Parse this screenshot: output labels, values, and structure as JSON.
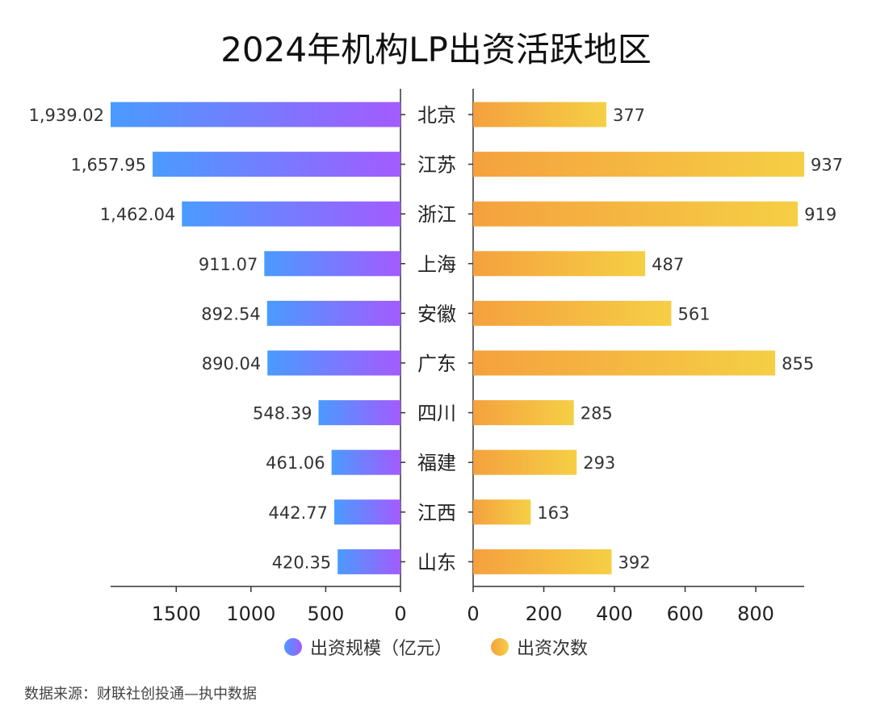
{
  "title": "2024年机构LP出资活跃地区",
  "source": "数据来源：财联社创投通—执中数据",
  "colors": {
    "left_gradient": [
      "#4a9bff",
      "#a35bff"
    ],
    "right_gradient": [
      "#f5a13e",
      "#f5cf45"
    ],
    "axis": "#333333",
    "text": "#333333"
  },
  "chart_data": {
    "type": "bar",
    "orientation": "horizontal-butterfly",
    "title": "2024年机构LP出资活跃地区",
    "categories": [
      "北京",
      "江苏",
      "浙江",
      "上海",
      "安徽",
      "广东",
      "四川",
      "福建",
      "江西",
      "山东"
    ],
    "series": [
      {
        "name": "出资规模（亿元）",
        "side": "left",
        "values": [
          1939.02,
          1657.95,
          1462.04,
          911.07,
          892.54,
          890.04,
          548.39,
          461.06,
          442.77,
          420.35
        ],
        "labels": [
          "1,939.02",
          "1,657.95",
          "1,462.04",
          "911.07",
          "892.54",
          "890.04",
          "548.39",
          "461.06",
          "442.77",
          "420.35"
        ],
        "xlim": [
          0,
          1939.02
        ],
        "ticks": [
          1500,
          1000,
          500,
          0
        ]
      },
      {
        "name": "出资次数",
        "side": "right",
        "values": [
          377,
          937,
          919,
          487,
          561,
          855,
          285,
          293,
          163,
          392
        ],
        "labels": [
          "377",
          "937",
          "919",
          "487",
          "561",
          "855",
          "285",
          "293",
          "163",
          "392"
        ],
        "xlim": [
          0,
          937
        ],
        "ticks": [
          0,
          200,
          400,
          600,
          800
        ]
      }
    ],
    "legend_position": "bottom-center",
    "grid": false
  }
}
